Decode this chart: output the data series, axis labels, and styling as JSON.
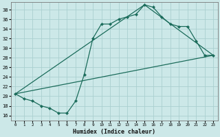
{
  "xlabel": "Humidex (Indice chaleur)",
  "bg_color": "#cce8e8",
  "line_color": "#1a6b5a",
  "grid_color": "#aacfcf",
  "xlim": [
    -0.5,
    23.5
  ],
  "ylim": [
    15,
    39.5
  ],
  "yticks": [
    16,
    18,
    20,
    22,
    24,
    26,
    28,
    30,
    32,
    34,
    36,
    38
  ],
  "xticks": [
    0,
    1,
    2,
    3,
    4,
    5,
    6,
    7,
    8,
    9,
    10,
    11,
    12,
    13,
    14,
    15,
    16,
    17,
    18,
    19,
    20,
    21,
    22,
    23
  ],
  "line1_x": [
    0,
    1,
    2,
    3,
    4,
    5,
    6,
    7,
    8,
    9,
    10,
    11,
    12,
    13,
    14,
    15,
    16,
    17,
    18,
    19,
    20,
    21,
    22,
    23
  ],
  "line1_y": [
    20.5,
    19.5,
    19.0,
    18.0,
    17.5,
    16.5,
    16.5,
    19.0,
    24.5,
    32.0,
    35.0,
    35.0,
    36.0,
    36.5,
    37.0,
    39.0,
    38.5,
    36.5,
    35.0,
    34.5,
    34.5,
    31.5,
    28.5,
    28.5
  ],
  "line2_x": [
    0,
    23
  ],
  "line2_y": [
    20.5,
    28.5
  ],
  "line3_x": [
    0,
    15,
    23
  ],
  "line3_y": [
    20.5,
    39.0,
    28.5
  ]
}
